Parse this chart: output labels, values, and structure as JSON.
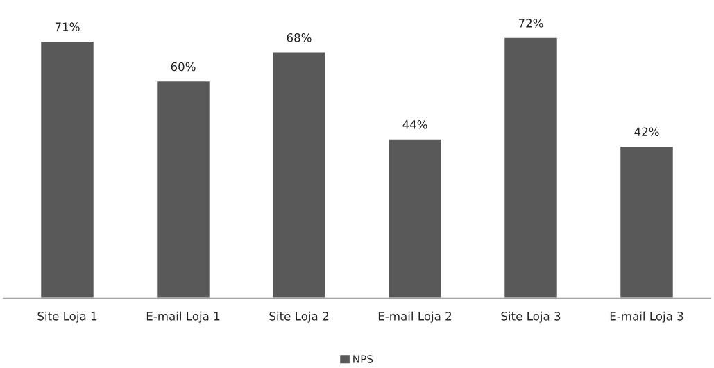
{
  "chart_data": {
    "type": "bar",
    "categories": [
      "Site Loja 1",
      "E-mail Loja 1",
      "Site Loja 2",
      "E-mail Loja 2",
      "Site Loja 3",
      "E-mail Loja 3"
    ],
    "series": [
      {
        "name": "NPS",
        "color": "#595959",
        "values": [
          71,
          60,
          68,
          44,
          72,
          42
        ],
        "value_labels": [
          "71%",
          "60%",
          "68%",
          "44%",
          "72%",
          "42%"
        ]
      }
    ],
    "legend": "bottom",
    "grid": false
  }
}
